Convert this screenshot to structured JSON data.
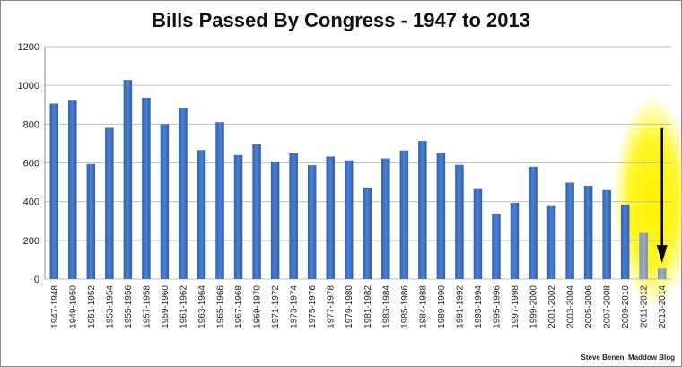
{
  "chart_data": {
    "type": "bar",
    "title": "Bills Passed By Congress - 1947 to 2013",
    "xlabel": "",
    "ylabel": "",
    "ylim": [
      0,
      1200
    ],
    "yticks": [
      0,
      200,
      400,
      600,
      800,
      1000,
      1200
    ],
    "grid": true,
    "legend": "none",
    "categories": [
      "1947-1948",
      "1949-1950",
      "1951-1952",
      "1953-1954",
      "1955-1956",
      "1957-1958",
      "1959-1960",
      "1961-1962",
      "1963-1964",
      "1965-1966",
      "1967-1968",
      "1969-1970",
      "1971-1972",
      "1973-1974",
      "1975-1976",
      "1977-1978",
      "1979-1980",
      "1981-1982",
      "1983-1984",
      "1985-1986",
      "1984-1988",
      "1989-1990",
      "1991-1992",
      "1993-1994",
      "1995-1996",
      "1997-1998",
      "1999-2000",
      "2001-2002",
      "2003-2004",
      "2005-2006",
      "2007-2008",
      "2009-2010",
      "2011-2012",
      "2013-2014"
    ],
    "values": [
      906,
      921,
      594,
      781,
      1028,
      936,
      800,
      885,
      666,
      810,
      640,
      695,
      607,
      649,
      588,
      633,
      613,
      473,
      623,
      664,
      713,
      650,
      590,
      465,
      337,
      394,
      580,
      377,
      498,
      482,
      460,
      385,
      238,
      55
    ],
    "highlighted_categories": [
      "2011-2012",
      "2013-2014"
    ],
    "annotation": "arrow pointing down to 2013-2014 bar",
    "colors": {
      "bar": "#3f73c1",
      "bar_highlight": "#8aa0b4",
      "grid": "#bfbfbf",
      "glow": "#fff200",
      "arrow": "#000000"
    },
    "credit": "Steve Benen, Maddow Blog"
  }
}
